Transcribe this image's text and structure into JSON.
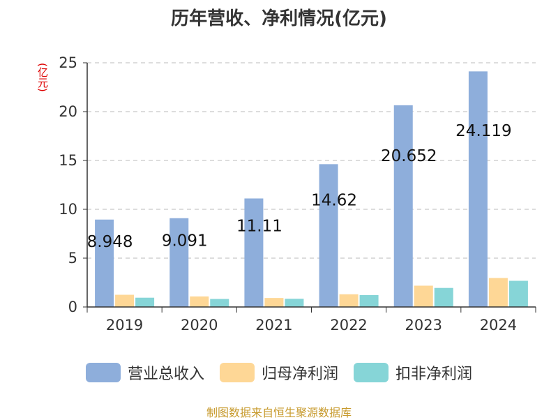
{
  "chart_data": {
    "type": "bar",
    "title": "历年营收、净利情况(亿元)",
    "unit_label": "(亿元)",
    "categories": [
      "2019",
      "2020",
      "2021",
      "2022",
      "2023",
      "2024"
    ],
    "series": [
      {
        "name": "营业总收入",
        "color": "#8eaedb",
        "values": [
          8.948,
          9.091,
          11.11,
          14.62,
          20.652,
          24.119
        ]
      },
      {
        "name": "归母净利润",
        "color": "#fed796",
        "values": [
          1.25,
          1.08,
          0.92,
          1.3,
          2.18,
          2.97
        ]
      },
      {
        "name": "扣非净利润",
        "color": "#86d5d7",
        "values": [
          0.95,
          0.82,
          0.84,
          1.22,
          1.95,
          2.68
        ]
      }
    ],
    "data_labels": [
      "8.948",
      "9.091",
      "11.11",
      "14.62",
      "20.652",
      "24.119"
    ],
    "ylim": [
      0,
      25
    ],
    "yticks": [
      0,
      5,
      10,
      15,
      20,
      25
    ],
    "grid": true,
    "legend_position": "bottom"
  },
  "source": "制图数据来自恒生聚源数据库"
}
